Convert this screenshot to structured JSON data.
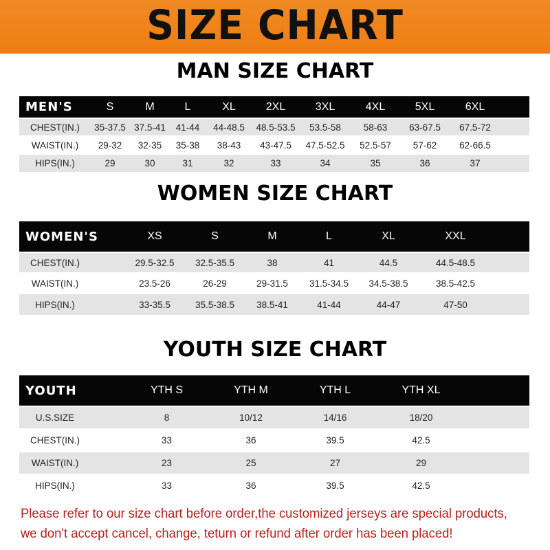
{
  "banner_title": "SIZE CHART",
  "colors": {
    "banner": "#ee7d12",
    "header_row": "#060606",
    "alt_row": "#e4e4e4",
    "note": "#b3201c"
  },
  "men": {
    "title": "MAN SIZE CHART",
    "header": [
      "MEN'S",
      "S",
      "M",
      "L",
      "XL",
      "2XL",
      "3XL",
      "4XL",
      "5XL",
      "6XL"
    ],
    "rows": [
      [
        "CHEST(IN.)",
        "35-37.5",
        "37.5-41",
        "41-44",
        "44-48.5",
        "48.5-53.5",
        "53.5-58",
        "58-63",
        "63-67.5",
        "67.5-72"
      ],
      [
        "WAIST(IN.)",
        "29-32",
        "32-35",
        "35-38",
        "38-43",
        "43-47.5",
        "47.5-52.5",
        "52.5-57",
        "57-62",
        "62-66.5"
      ],
      [
        "HIPS(IN.)",
        "29",
        "30",
        "31",
        "32",
        "33",
        "34",
        "35",
        "36",
        "37"
      ]
    ]
  },
  "women": {
    "title": "WOMEN SIZE CHART",
    "header": [
      "WOMEN'S",
      "XS",
      "S",
      "M",
      "L",
      "XL",
      "XXL"
    ],
    "rows": [
      [
        "CHEST(IN.)",
        "29.5-32.5",
        "32.5-35.5",
        "38",
        "41",
        "44.5",
        "44.5-48.5"
      ],
      [
        "WAIST(IN.)",
        "23.5-26",
        "26-29",
        "29-31.5",
        "31.5-34.5",
        "34.5-38.5",
        "38.5-42.5"
      ],
      [
        "HIPS(IN.)",
        "33-35.5",
        "35.5-38.5",
        "38.5-41",
        "41-44",
        "44-47",
        "47-50"
      ]
    ]
  },
  "youth": {
    "title": "YOUTH SIZE CHART",
    "header": [
      "YOUTH",
      "YTH S",
      "YTH M",
      "YTH L",
      "YTH XL"
    ],
    "rows": [
      [
        "U.S.SIZE",
        "8",
        "10/12",
        "14/16",
        "18/20"
      ],
      [
        "CHEST(IN.)",
        "33",
        "36",
        "39.5",
        "42.5"
      ],
      [
        "WAIST(IN.)",
        "23",
        "25",
        "27",
        "29"
      ],
      [
        "HIPS(IN.)",
        "33",
        "36",
        "39.5",
        "42.5"
      ]
    ]
  },
  "note": {
    "line1": "Please refer to our size chart before order,the customized jerseys are special products,",
    "line2": "we don't accept cancel, change, teturn or refund after order has been placed!"
  }
}
